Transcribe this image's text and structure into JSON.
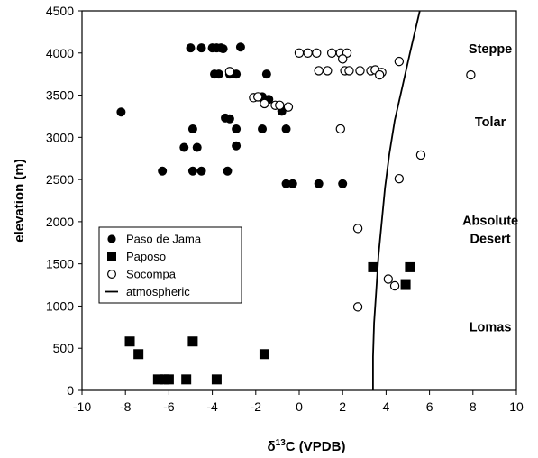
{
  "chart_data": {
    "type": "scatter",
    "title": "",
    "xlabel": "δ13C (VPDB)",
    "xlabel_parts": {
      "base": "δ",
      "sup": "13",
      "rest": "C (VPDB)"
    },
    "ylabel": "elevation (m)",
    "xlim": [
      -10,
      10
    ],
    "ylim": [
      0,
      4500
    ],
    "xticks": [
      -10,
      -8,
      -6,
      -4,
      -2,
      0,
      2,
      4,
      6,
      8,
      10
    ],
    "yticks": [
      0,
      500,
      1000,
      1500,
      2000,
      2500,
      3000,
      3500,
      4000,
      4500
    ],
    "grid": false,
    "legend_position": "left-middle",
    "zone_labels": [
      {
        "lines": [
          "Steppe"
        ],
        "x": 8.8,
        "y": 4000
      },
      {
        "lines": [
          "Tolar"
        ],
        "x": 8.8,
        "y": 3130
      },
      {
        "lines": [
          "Absolute",
          "Desert"
        ],
        "x": 8.8,
        "y": 1960
      },
      {
        "lines": [
          "Lomas"
        ],
        "x": 8.8,
        "y": 700
      }
    ],
    "series": [
      {
        "name": "Paso de Jama",
        "marker": "filled-circle",
        "color": "#000000",
        "points": [
          [
            -5.0,
            4060
          ],
          [
            -4.5,
            4060
          ],
          [
            -4.0,
            4060
          ],
          [
            -3.8,
            4060
          ],
          [
            -3.6,
            4060
          ],
          [
            -3.5,
            4050
          ],
          [
            -2.7,
            4070
          ],
          [
            -3.9,
            3750
          ],
          [
            -3.7,
            3750
          ],
          [
            -3.2,
            3750
          ],
          [
            -2.9,
            3750
          ],
          [
            -1.5,
            3750
          ],
          [
            -1.7,
            3480
          ],
          [
            -1.4,
            3450
          ],
          [
            -0.8,
            3310
          ],
          [
            -8.2,
            3300
          ],
          [
            -3.4,
            3230
          ],
          [
            -3.2,
            3220
          ],
          [
            -4.9,
            3100
          ],
          [
            -2.9,
            3100
          ],
          [
            -1.7,
            3100
          ],
          [
            -0.6,
            3100
          ],
          [
            -5.3,
            2880
          ],
          [
            -4.7,
            2880
          ],
          [
            -2.9,
            2900
          ],
          [
            -6.3,
            2600
          ],
          [
            -4.9,
            2600
          ],
          [
            -4.5,
            2600
          ],
          [
            -3.3,
            2600
          ],
          [
            -0.6,
            2450
          ],
          [
            -0.3,
            2450
          ],
          [
            0.9,
            2450
          ],
          [
            2.0,
            2450
          ]
        ]
      },
      {
        "name": "Paposo",
        "marker": "filled-square",
        "color": "#000000",
        "points": [
          [
            -7.8,
            580
          ],
          [
            -7.4,
            430
          ],
          [
            -4.9,
            580
          ],
          [
            -1.6,
            430
          ],
          [
            -6.5,
            130
          ],
          [
            -6.2,
            130
          ],
          [
            -6.0,
            130
          ],
          [
            -5.2,
            130
          ],
          [
            -3.8,
            130
          ],
          [
            3.4,
            1460
          ],
          [
            5.1,
            1460
          ],
          [
            4.9,
            1250
          ]
        ]
      },
      {
        "name": "Socompa",
        "marker": "open-circle",
        "color": "#000000",
        "points": [
          [
            0.0,
            4000
          ],
          [
            0.4,
            4000
          ],
          [
            0.8,
            4000
          ],
          [
            1.5,
            4000
          ],
          [
            1.9,
            4000
          ],
          [
            2.2,
            4000
          ],
          [
            2.0,
            3930
          ],
          [
            4.6,
            3900
          ],
          [
            -3.2,
            3780
          ],
          [
            0.9,
            3790
          ],
          [
            1.3,
            3790
          ],
          [
            2.1,
            3790
          ],
          [
            2.3,
            3790
          ],
          [
            2.8,
            3790
          ],
          [
            3.3,
            3790
          ],
          [
            3.5,
            3800
          ],
          [
            3.8,
            3770
          ],
          [
            3.7,
            3740
          ],
          [
            7.9,
            3740
          ],
          [
            -2.1,
            3470
          ],
          [
            -1.9,
            3480
          ],
          [
            -1.6,
            3400
          ],
          [
            -1.1,
            3380
          ],
          [
            -0.9,
            3380
          ],
          [
            -0.5,
            3360
          ],
          [
            1.9,
            3100
          ],
          [
            5.6,
            2790
          ],
          [
            4.6,
            2510
          ],
          [
            2.7,
            1920
          ],
          [
            4.1,
            1320
          ],
          [
            4.4,
            1240
          ],
          [
            2.7,
            990
          ]
        ]
      },
      {
        "name": "atmospheric",
        "marker": "line",
        "color": "#000000",
        "points": [
          [
            3.4,
            0
          ],
          [
            3.4,
            400
          ],
          [
            3.45,
            800
          ],
          [
            3.55,
            1200
          ],
          [
            3.65,
            1600
          ],
          [
            3.8,
            2000
          ],
          [
            3.95,
            2400
          ],
          [
            4.15,
            2800
          ],
          [
            4.4,
            3200
          ],
          [
            4.75,
            3600
          ],
          [
            5.1,
            4000
          ],
          [
            5.55,
            4500
          ]
        ]
      }
    ]
  }
}
